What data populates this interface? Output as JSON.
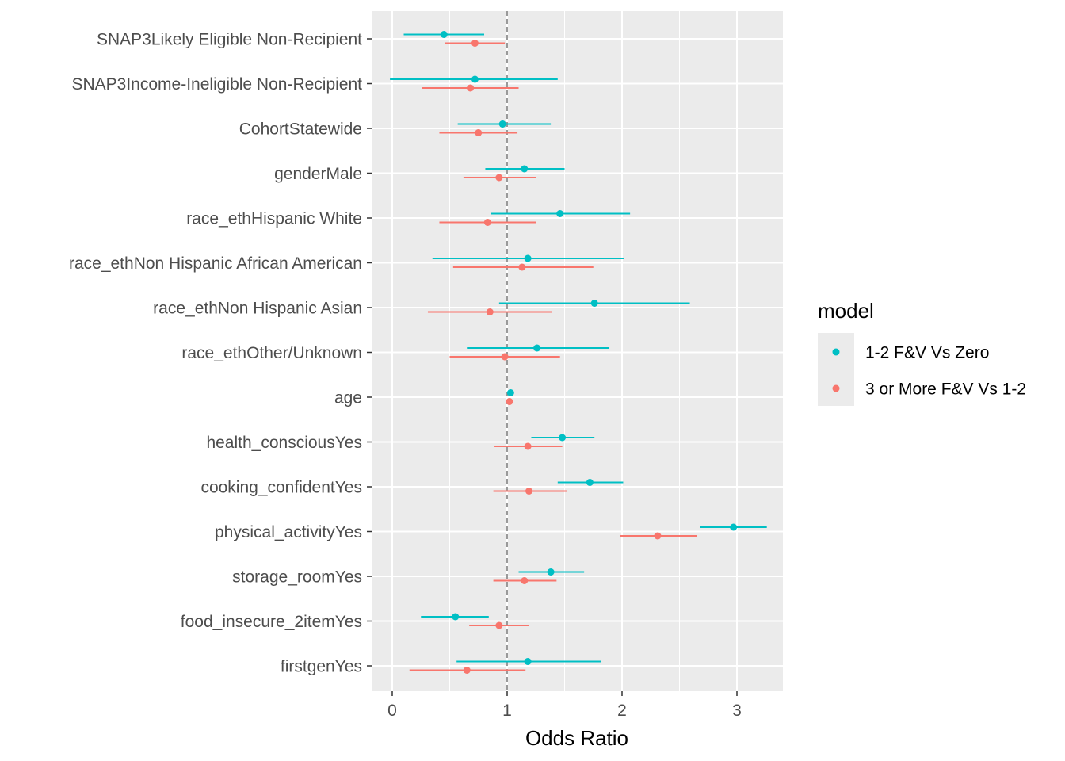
{
  "chart_data": {
    "type": "scatter",
    "title": "",
    "xlabel": "Odds Ratio",
    "ylabel": "",
    "xlim": [
      -0.18,
      3.4
    ],
    "xticks": [
      0,
      1,
      2,
      3
    ],
    "x_tick_labels": [
      "0",
      "1",
      "2",
      "3"
    ],
    "reference_line_x": 1,
    "grid": true,
    "legend_title": "model",
    "legend_position": "right",
    "categories": [
      "SNAP3Likely Eligible Non-Recipient",
      "SNAP3Income-Ineligible Non-Recipient",
      "CohortStatewide",
      "genderMale",
      "race_ethHispanic White",
      "race_ethNon Hispanic African American",
      "race_ethNon Hispanic Asian",
      "race_ethOther/Unknown",
      "age",
      "health_consciousYes",
      "cooking_confidentYes",
      "physical_activityYes",
      "storage_roomYes",
      "food_insecure_2itemYes",
      "firstgenYes"
    ],
    "series": [
      {
        "name": "1-2 F&V Vs Zero",
        "color": "#00BFC4",
        "estimates": [
          0.45,
          0.72,
          0.96,
          1.15,
          1.46,
          1.18,
          1.76,
          1.26,
          1.03,
          1.48,
          1.72,
          2.97,
          1.38,
          0.55,
          1.18
        ],
        "lower": [
          0.1,
          -0.02,
          0.57,
          0.81,
          0.86,
          0.35,
          0.93,
          0.65,
          1.02,
          1.21,
          1.44,
          2.68,
          1.1,
          0.25,
          0.56
        ],
        "upper": [
          0.8,
          1.44,
          1.38,
          1.5,
          2.07,
          2.02,
          2.59,
          1.89,
          1.04,
          1.76,
          2.01,
          3.26,
          1.67,
          0.84,
          1.82
        ]
      },
      {
        "name": "3 or More F&V Vs 1-2",
        "color": "#F8766D",
        "estimates": [
          0.72,
          0.68,
          0.75,
          0.93,
          0.83,
          1.13,
          0.85,
          0.98,
          1.02,
          1.18,
          1.19,
          2.31,
          1.15,
          0.93,
          0.65
        ],
        "lower": [
          0.46,
          0.26,
          0.41,
          0.62,
          0.41,
          0.53,
          0.31,
          0.5,
          1.01,
          0.89,
          0.88,
          1.98,
          0.88,
          0.67,
          0.15
        ],
        "upper": [
          0.98,
          1.1,
          1.09,
          1.25,
          1.25,
          1.75,
          1.39,
          1.46,
          1.03,
          1.48,
          1.52,
          2.65,
          1.43,
          1.19,
          1.16
        ]
      }
    ]
  }
}
